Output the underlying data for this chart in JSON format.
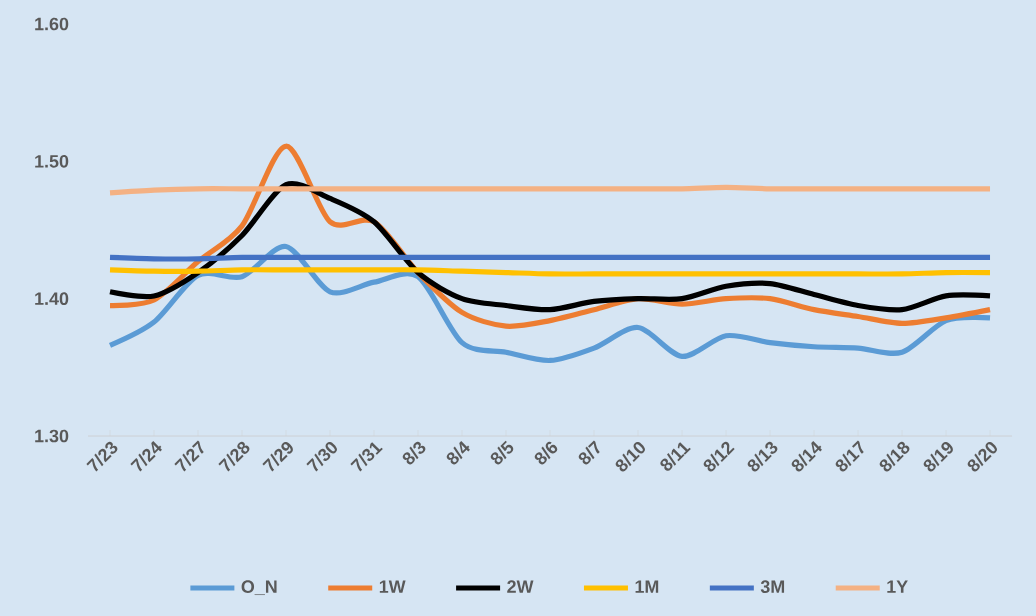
{
  "chart_data": {
    "type": "line",
    "categories": [
      "7/23",
      "7/24",
      "7/27",
      "7/28",
      "7/29",
      "7/30",
      "7/31",
      "8/3",
      "8/4",
      "8/5",
      "8/6",
      "8/7",
      "8/10",
      "8/11",
      "8/12",
      "8/13",
      "8/14",
      "8/17",
      "8/18",
      "8/19",
      "8/20"
    ],
    "series": [
      {
        "name": "O_N",
        "color": "#5b9bd5",
        "values": [
          1.366,
          1.383,
          1.417,
          1.416,
          1.438,
          1.405,
          1.412,
          1.416,
          1.368,
          1.361,
          1.355,
          1.364,
          1.379,
          1.358,
          1.373,
          1.368,
          1.365,
          1.364,
          1.361,
          1.384,
          1.386
        ]
      },
      {
        "name": "1W",
        "color": "#ed7d31",
        "values": [
          1.395,
          1.399,
          1.427,
          1.453,
          1.511,
          1.456,
          1.456,
          1.419,
          1.39,
          1.38,
          1.384,
          1.392,
          1.4,
          1.396,
          1.4,
          1.4,
          1.392,
          1.387,
          1.382,
          1.386,
          1.392
        ]
      },
      {
        "name": "2W",
        "color": "#000000",
        "values": [
          1.405,
          1.402,
          1.419,
          1.446,
          1.483,
          1.473,
          1.456,
          1.419,
          1.4,
          1.395,
          1.392,
          1.398,
          1.4,
          1.4,
          1.409,
          1.411,
          1.403,
          1.395,
          1.392,
          1.402,
          1.402
        ]
      },
      {
        "name": "1M",
        "color": "#ffc000",
        "values": [
          1.421,
          1.42,
          1.42,
          1.421,
          1.421,
          1.421,
          1.421,
          1.421,
          1.42,
          1.419,
          1.418,
          1.418,
          1.418,
          1.418,
          1.418,
          1.418,
          1.418,
          1.418,
          1.418,
          1.419,
          1.419
        ]
      },
      {
        "name": "3M",
        "color": "#4472c4",
        "values": [
          1.43,
          1.429,
          1.429,
          1.43,
          1.43,
          1.43,
          1.43,
          1.43,
          1.43,
          1.43,
          1.43,
          1.43,
          1.43,
          1.43,
          1.43,
          1.43,
          1.43,
          1.43,
          1.43,
          1.43,
          1.43
        ]
      },
      {
        "name": "1Y",
        "color": "#f4b183",
        "values": [
          1.477,
          1.479,
          1.48,
          1.48,
          1.48,
          1.48,
          1.48,
          1.48,
          1.48,
          1.48,
          1.48,
          1.48,
          1.48,
          1.48,
          1.481,
          1.48,
          1.48,
          1.48,
          1.48,
          1.48,
          1.48
        ]
      }
    ],
    "ylim": [
      1.3,
      1.6
    ],
    "yticks": [
      {
        "value": 1.3,
        "label": "1.30"
      },
      {
        "value": 1.4,
        "label": "1.40"
      },
      {
        "value": 1.5,
        "label": "1.50"
      },
      {
        "value": 1.6,
        "label": "1.60"
      }
    ],
    "grid": false,
    "legend": "bottom",
    "marker": "none",
    "line_style": "solid"
  }
}
